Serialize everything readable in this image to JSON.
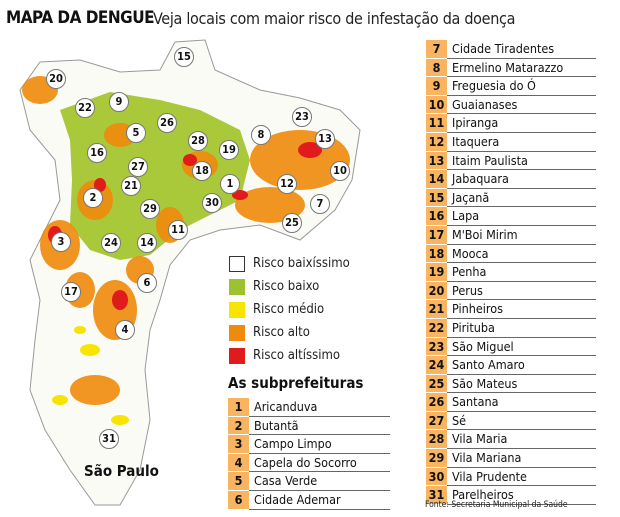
{
  "header": {
    "title": "MAPA DA DENGUE",
    "subtitle": "Veja locais com maior risco de infestação da doença"
  },
  "map": {
    "city_label": "São Paulo",
    "markers": [
      "1",
      "2",
      "3",
      "4",
      "5",
      "6",
      "7",
      "8",
      "9",
      "10",
      "11",
      "12",
      "13",
      "14",
      "15",
      "16",
      "17",
      "18",
      "19",
      "20",
      "21",
      "22",
      "23",
      "24",
      "25",
      "26",
      "27",
      "28",
      "29",
      "30",
      "31"
    ]
  },
  "legend": {
    "items": [
      {
        "label": "Risco baixíssimo",
        "color": "#ffffff"
      },
      {
        "label": "Risco baixo",
        "color": "#9dc22f"
      },
      {
        "label": "Risco médio",
        "color": "#f7e400"
      },
      {
        "label": "Risco alto",
        "color": "#f08a0c"
      },
      {
        "label": "Risco altíssimo",
        "color": "#e01b1b"
      }
    ]
  },
  "subprefeituras": {
    "heading": "As subprefeituras",
    "items": [
      {
        "n": "1",
        "name": "Aricanduva"
      },
      {
        "n": "2",
        "name": "Butantã"
      },
      {
        "n": "3",
        "name": "Campo Limpo"
      },
      {
        "n": "4",
        "name": "Capela do Socorro"
      },
      {
        "n": "5",
        "name": "Casa Verde"
      },
      {
        "n": "6",
        "name": "Cidade Ademar"
      },
      {
        "n": "7",
        "name": "Cidade Tiradentes"
      },
      {
        "n": "8",
        "name": "Ermelino Matarazzo"
      },
      {
        "n": "9",
        "name": "Freguesia do Ó"
      },
      {
        "n": "10",
        "name": "Guaianases"
      },
      {
        "n": "11",
        "name": "Ipiranga"
      },
      {
        "n": "12",
        "name": "Itaquera"
      },
      {
        "n": "13",
        "name": "Itaim Paulista"
      },
      {
        "n": "14",
        "name": "Jabaquara"
      },
      {
        "n": "15",
        "name": "Jaçanã"
      },
      {
        "n": "16",
        "name": "Lapa"
      },
      {
        "n": "17",
        "name": "M'Boi Mirim"
      },
      {
        "n": "18",
        "name": "Mooca"
      },
      {
        "n": "19",
        "name": "Penha"
      },
      {
        "n": "20",
        "name": "Perus"
      },
      {
        "n": "21",
        "name": "Pinheiros"
      },
      {
        "n": "22",
        "name": "Pirituba"
      },
      {
        "n": "23",
        "name": "São Miguel"
      },
      {
        "n": "24",
        "name": "Santo Amaro"
      },
      {
        "n": "25",
        "name": "São Mateus"
      },
      {
        "n": "26",
        "name": "Santana"
      },
      {
        "n": "27",
        "name": "Sé"
      },
      {
        "n": "28",
        "name": "Vila Maria"
      },
      {
        "n": "29",
        "name": "Vila Mariana"
      },
      {
        "n": "30",
        "name": "Vila Prudente"
      },
      {
        "n": "31",
        "name": "Parelheiros"
      }
    ]
  },
  "source": "Fonte: Secretaria Municipal da Saúde"
}
